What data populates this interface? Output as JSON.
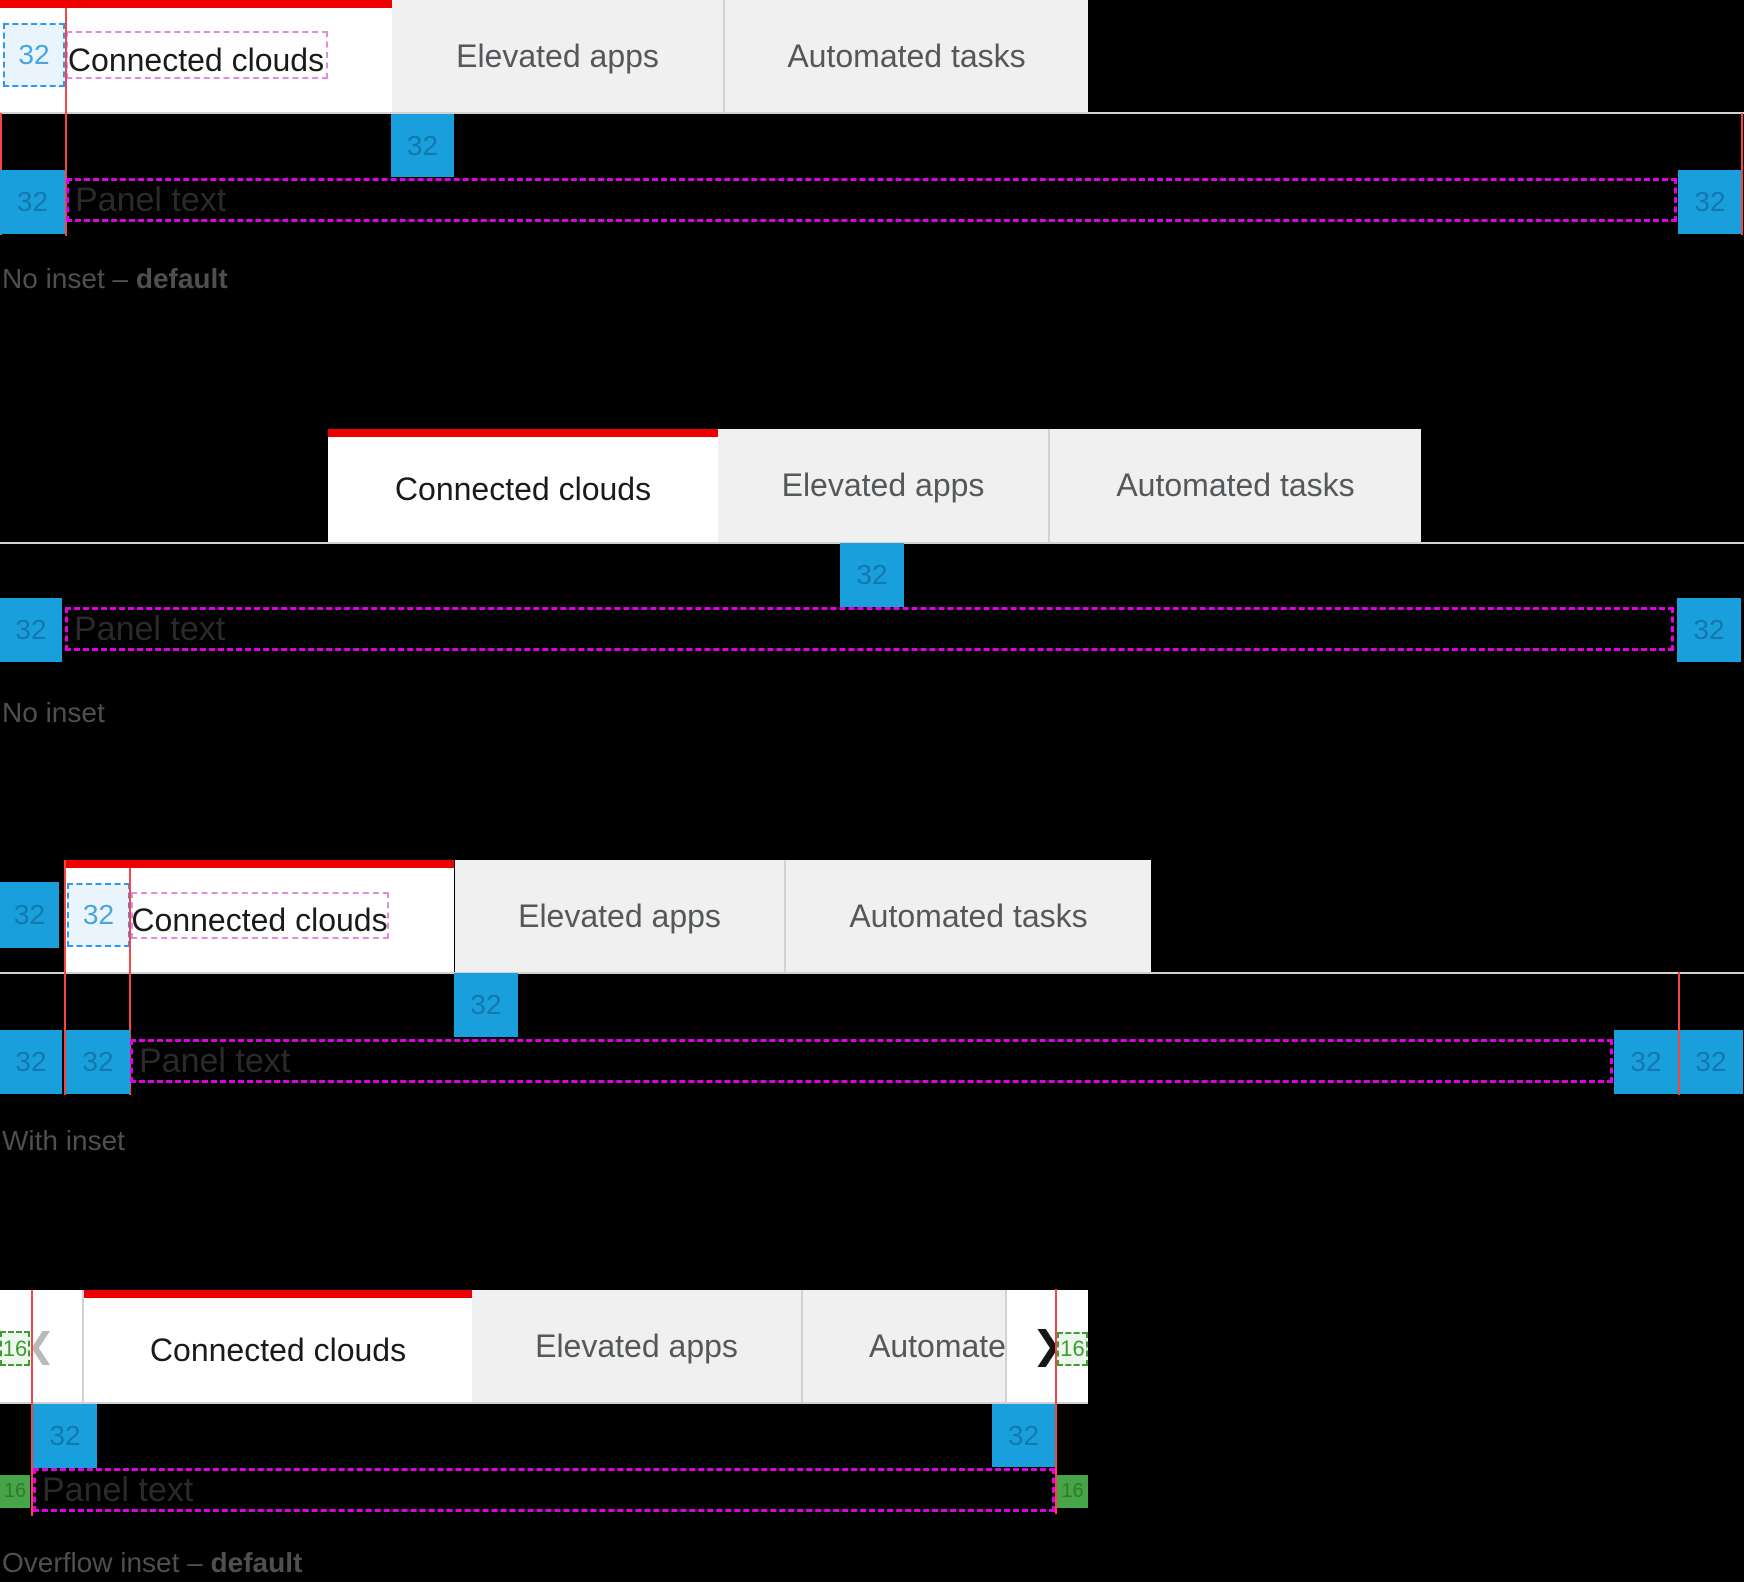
{
  "colors": {
    "background": "#000000",
    "tab_active_bg": "#ffffff",
    "tab_inactive_bg": "#f0f0f0",
    "tab_border": "#d2d2d2",
    "active_indicator_red": "#ee0000",
    "measure_line_red": "#f54545",
    "spacer_blue": "#1a9fdd",
    "spacer_green": "#48a448",
    "magenta_dashed": "#e000e0",
    "violet_dashed": "#e08ae0",
    "blue_dashed_border": "#2b9af3",
    "blue_dashed_fill": "#e9f4fc",
    "blue_dashed_text": "#4aa5dd",
    "green_dashed_border": "#3f9c35",
    "green_dashed_fill": "#eef7ee",
    "label_gray": "#4f4f4f",
    "tab_text_active": "#1a1a1a",
    "tab_text_inactive": "#55585a",
    "panel_text_color": "#2a2a2a"
  },
  "tabs": {
    "tab1": "Connected clouds",
    "tab2": "Elevated apps",
    "tab3": "Automated tasks"
  },
  "panel": {
    "text": "Panel text"
  },
  "spacers": {
    "s32": "32",
    "s16": "16"
  },
  "icons": {
    "chevron_left": "❮",
    "chevron_right": "❯"
  },
  "captions": {
    "s1_regular": "No inset – ",
    "s1_bold": "default",
    "s2": "No inset",
    "s3": "With inset",
    "s4_regular": "Overflow inset – ",
    "s4_bold": "default"
  }
}
